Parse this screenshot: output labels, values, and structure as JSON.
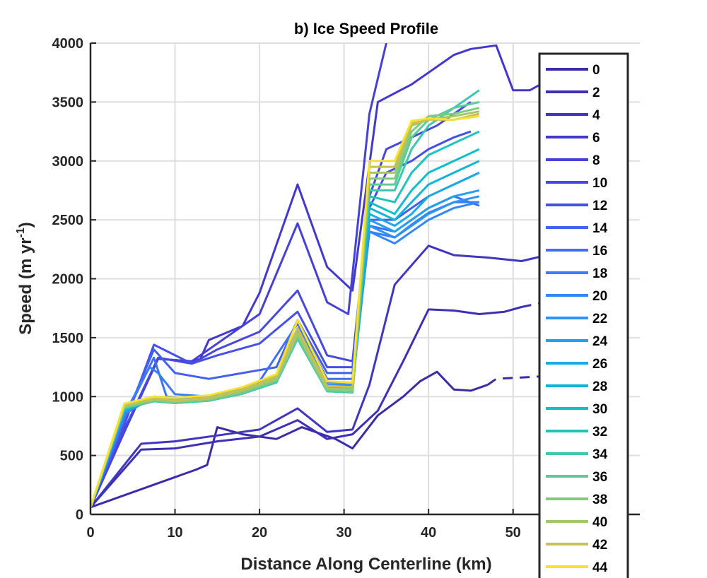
{
  "chart_data": {
    "type": "line",
    "title": "b) Ice Speed Profile",
    "xlabel": "Distance Along Centerline (km)",
    "ylabel": "Speed (m yr",
    "ylabel_superscript": "-1",
    "ylabel_close": ")",
    "xlim": [
      0,
      65
    ],
    "ylim": [
      0,
      4000
    ],
    "xticks": [
      0,
      10,
      20,
      30,
      40,
      50
    ],
    "yticks": [
      0,
      500,
      1000,
      1500,
      2000,
      2500,
      3000,
      3500,
      4000
    ],
    "grid": true,
    "legend_position": "right, overlapping axes",
    "colormap": "parula",
    "legend_entries": [
      "0",
      "2",
      "4",
      "6",
      "8",
      "10",
      "12",
      "14",
      "16",
      "18",
      "20",
      "22",
      "24",
      "26",
      "28",
      "30",
      "32",
      "34",
      "36",
      "38",
      "40",
      "42",
      "44"
    ],
    "series": [
      {
        "name": "0",
        "color": "#3a2ca8",
        "x": [
          0,
          12.5,
          13.8,
          15,
          18,
          22,
          25,
          29,
          31,
          34,
          37,
          39,
          41,
          43,
          45,
          47
        ],
        "y": [
          60,
          380,
          420,
          740,
          680,
          640,
          740,
          640,
          560,
          840,
          1000,
          1130,
          1210,
          1060,
          1050,
          1100
        ],
        "dashed_from": 47,
        "dash_x": [
          48,
          53
        ],
        "dash_y": [
          1150,
          1170
        ]
      },
      {
        "name": "2",
        "color": "#3d30b4",
        "x": [
          0,
          6,
          10,
          15,
          20,
          24.5,
          28,
          31,
          34,
          37,
          40,
          43,
          46,
          49,
          51
        ],
        "y": [
          60,
          550,
          560,
          620,
          660,
          800,
          640,
          680,
          880,
          1300,
          1740,
          1730,
          1700,
          1720,
          1760
        ],
        "dash_x": [
          51,
          53
        ],
        "dash_y": [
          1760,
          1790
        ]
      },
      {
        "name": "4",
        "color": "#4036c0",
        "x": [
          0,
          6,
          10,
          15,
          20,
          24.5,
          28,
          31,
          33,
          36,
          40,
          43,
          47,
          51,
          54,
          57
        ],
        "y": [
          60,
          600,
          620,
          670,
          720,
          900,
          700,
          720,
          1100,
          1950,
          2280,
          2200,
          2180,
          2150,
          2200,
          2250
        ]
      },
      {
        "name": "6",
        "color": "#4238cc",
        "x": [
          0,
          4,
          8,
          12,
          13,
          14,
          18,
          20,
          24.5,
          28,
          31,
          34,
          38,
          40,
          43,
          45,
          48,
          50,
          52,
          54,
          56
        ],
        "y": [
          60,
          700,
          1320,
          1300,
          1320,
          1480,
          1600,
          1880,
          2800,
          2100,
          1900,
          3500,
          3650,
          3750,
          3900,
          3950,
          3980,
          3600,
          3600,
          3680,
          3750
        ]
      },
      {
        "name": "8",
        "color": "#4540d6",
        "x": [
          0,
          4,
          8,
          12,
          15,
          20,
          24.5,
          28,
          30.5,
          33,
          35
        ],
        "y": [
          60,
          700,
          1320,
          1300,
          1450,
          1700,
          2470,
          1800,
          1700,
          3400,
          4000
        ]
      },
      {
        "name": "10",
        "color": "#4648de",
        "x": [
          0,
          4,
          8,
          12,
          15,
          20,
          24.5,
          28,
          31,
          33,
          35,
          38,
          41,
          43,
          45
        ],
        "y": [
          60,
          720,
          1330,
          1280,
          1400,
          1550,
          1900,
          1350,
          1300,
          2700,
          3100,
          3200,
          3300,
          3400,
          3500
        ]
      },
      {
        "name": "12",
        "color": "#4650e8",
        "x": [
          0,
          4,
          7.5,
          12,
          15,
          20,
          24.5,
          28,
          31,
          33,
          35,
          38,
          40,
          43,
          45
        ],
        "y": [
          60,
          760,
          1440,
          1280,
          1350,
          1450,
          1720,
          1250,
          1250,
          2600,
          2900,
          3000,
          3100,
          3200,
          3250
        ]
      },
      {
        "name": "14",
        "color": "#4460f0",
        "x": [
          0,
          4,
          7.5,
          10,
          14,
          18,
          22,
          24.5,
          28,
          31,
          33,
          36,
          38,
          40,
          43,
          46
        ],
        "y": [
          60,
          800,
          1400,
          1200,
          1150,
          1200,
          1250,
          1650,
          1200,
          1200,
          2500,
          2500,
          2600,
          2700,
          2800,
          2900
        ]
      },
      {
        "name": "16",
        "color": "#3f70f6",
        "x": [
          0,
          4,
          7.5,
          9,
          12,
          16,
          20,
          24.5,
          28,
          31,
          33,
          36,
          38,
          40,
          43,
          46
        ],
        "y": [
          60,
          820,
          1330,
          1000,
          980,
          1020,
          1130,
          1620,
          1150,
          1150,
          2450,
          2400,
          2500,
          2600,
          2700,
          2620
        ]
      },
      {
        "name": "18",
        "color": "#3a7cf8",
        "x": [
          0,
          4,
          7,
          8,
          10,
          14,
          18,
          22,
          24.5,
          28,
          31,
          33,
          36,
          38,
          40,
          43,
          46
        ],
        "y": [
          60,
          850,
          1250,
          1200,
          1020,
          1000,
          1060,
          1180,
          1580,
          1120,
          1120,
          2400,
          2350,
          2460,
          2560,
          2650,
          2650
        ]
      },
      {
        "name": "20",
        "color": "#3388f8",
        "x": [
          0,
          4,
          7.5,
          10,
          14,
          18,
          22,
          24.5,
          28,
          31,
          33,
          36,
          38,
          40,
          43,
          46
        ],
        "y": [
          60,
          850,
          1000,
          990,
          1000,
          1060,
          1180,
          1560,
          1100,
          1100,
          2400,
          2300,
          2400,
          2500,
          2600,
          2650
        ]
      },
      {
        "name": "22",
        "color": "#2c94f4",
        "x": [
          0,
          4,
          7.5,
          10,
          14,
          18,
          22,
          24.5,
          28,
          31,
          33,
          36,
          38,
          40,
          43,
          46
        ],
        "y": [
          60,
          870,
          990,
          980,
          1000,
          1050,
          1170,
          1560,
          1100,
          1080,
          2450,
          2350,
          2450,
          2550,
          2650,
          2700
        ]
      },
      {
        "name": "24",
        "color": "#23a0ec",
        "x": [
          0,
          4,
          7.5,
          10,
          14,
          18,
          22,
          24.5,
          28,
          31,
          33,
          36,
          38,
          40,
          43,
          46
        ],
        "y": [
          60,
          880,
          980,
          970,
          990,
          1050,
          1160,
          1540,
          1080,
          1070,
          2500,
          2400,
          2500,
          2600,
          2700,
          2750
        ]
      },
      {
        "name": "26",
        "color": "#1aabe2",
        "x": [
          0,
          4,
          7.5,
          10,
          14,
          18,
          22,
          24.5,
          28,
          31,
          33,
          36,
          38,
          40,
          43,
          46
        ],
        "y": [
          60,
          880,
          975,
          960,
          980,
          1040,
          1150,
          1520,
          1070,
          1060,
          2550,
          2450,
          2550,
          2700,
          2800,
          2900
        ]
      },
      {
        "name": "28",
        "color": "#14b4d6",
        "x": [
          0,
          4,
          7.5,
          10,
          14,
          18,
          22,
          24.5,
          28,
          31,
          33,
          36,
          38,
          40,
          43,
          46
        ],
        "y": [
          60,
          890,
          970,
          955,
          975,
          1035,
          1140,
          1510,
          1060,
          1050,
          2600,
          2500,
          2650,
          2800,
          2900,
          3000
        ]
      },
      {
        "name": "30",
        "color": "#11bccb",
        "x": [
          0,
          4,
          7.5,
          10,
          14,
          18,
          22,
          24.5,
          28,
          31,
          33,
          36,
          38,
          40,
          43,
          46
        ],
        "y": [
          60,
          890,
          965,
          950,
          970,
          1030,
          1130,
          1500,
          1050,
          1040,
          2650,
          2550,
          2750,
          2900,
          3000,
          3100
        ]
      },
      {
        "name": "32",
        "color": "#1ec3bd",
        "x": [
          0,
          4,
          7.5,
          10,
          14,
          18,
          22,
          24.5,
          28,
          31,
          33,
          36,
          38,
          40,
          43,
          46
        ],
        "y": [
          60,
          900,
          960,
          945,
          965,
          1025,
          1120,
          1490,
          1045,
          1035,
          2700,
          2650,
          2900,
          3050,
          3150,
          3250
        ]
      },
      {
        "name": "34",
        "color": "#3cc8ac",
        "x": [
          0,
          4,
          7.5,
          10,
          14,
          18,
          22,
          24.5,
          28,
          31,
          33,
          36,
          38,
          40,
          43,
          46
        ],
        "y": [
          60,
          900,
          960,
          945,
          965,
          1025,
          1120,
          1490,
          1045,
          1035,
          2750,
          2750,
          3100,
          3300,
          3450,
          3600
        ]
      },
      {
        "name": "36",
        "color": "#5ccb98",
        "x": [
          0,
          4,
          7.5,
          10,
          14,
          18,
          22,
          24.5,
          28,
          31,
          33,
          36,
          38,
          40,
          43,
          46
        ],
        "y": [
          60,
          910,
          965,
          950,
          970,
          1030,
          1130,
          1500,
          1050,
          1040,
          2800,
          2800,
          3200,
          3350,
          3450,
          3500
        ]
      },
      {
        "name": "38",
        "color": "#80cb82",
        "x": [
          0,
          4,
          7.5,
          10,
          14,
          18,
          22,
          24.5,
          28,
          31,
          33,
          36,
          38,
          40,
          43,
          46
        ],
        "y": [
          60,
          910,
          970,
          955,
          975,
          1040,
          1140,
          1520,
          1060,
          1050,
          2850,
          2850,
          3250,
          3380,
          3400,
          3450
        ]
      },
      {
        "name": "40",
        "color": "#a4c76a",
        "x": [
          0,
          4,
          7.5,
          10,
          14,
          18,
          22,
          24.5,
          28,
          31,
          33,
          36,
          38,
          40,
          43,
          46
        ],
        "y": [
          60,
          920,
          975,
          960,
          980,
          1050,
          1150,
          1540,
          1070,
          1060,
          2900,
          2900,
          3300,
          3350,
          3380,
          3420
        ]
      },
      {
        "name": "42",
        "color": "#c8c052",
        "x": [
          0,
          4,
          7.5,
          10,
          14,
          18,
          22,
          24.5,
          28,
          31,
          33,
          36,
          38,
          40,
          43,
          46
        ],
        "y": [
          60,
          930,
          985,
          970,
          990,
          1060,
          1170,
          1580,
          1090,
          1080,
          2950,
          2950,
          3320,
          3350,
          3350,
          3400
        ]
      },
      {
        "name": "44",
        "color": "#f2e232",
        "x": [
          0,
          4,
          7.5,
          10,
          14,
          18,
          22,
          24.5,
          28,
          31,
          33,
          36,
          38,
          40,
          43,
          46
        ],
        "y": [
          60,
          940,
          1000,
          990,
          1010,
          1080,
          1190,
          1650,
          1130,
          1120,
          3000,
          3000,
          3340,
          3360,
          3350,
          3380
        ]
      }
    ]
  }
}
